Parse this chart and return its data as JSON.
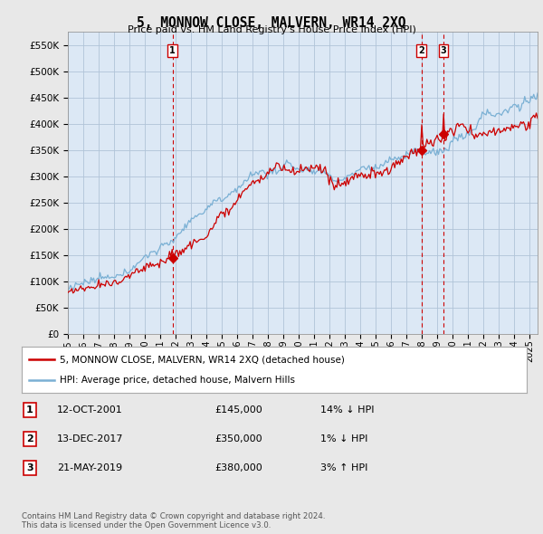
{
  "title": "5, MONNOW CLOSE, MALVERN, WR14 2XQ",
  "subtitle": "Price paid vs. HM Land Registry's House Price Index (HPI)",
  "ylabel_ticks": [
    "£0",
    "£50K",
    "£100K",
    "£150K",
    "£200K",
    "£250K",
    "£300K",
    "£350K",
    "£400K",
    "£450K",
    "£500K",
    "£550K"
  ],
  "ylim": [
    0,
    575000
  ],
  "xlim_start": 1995.0,
  "xlim_end": 2025.5,
  "background_color": "#e8e8e8",
  "plot_bg_color": "#dce8f5",
  "grid_color": "#b0c4d8",
  "sale_color": "#cc0000",
  "hpi_color": "#7ab0d4",
  "annotation_color": "#cc0000",
  "legend_sale_label": "5, MONNOW CLOSE, MALVERN, WR14 2XQ (detached house)",
  "legend_hpi_label": "HPI: Average price, detached house, Malvern Hills",
  "transactions": [
    {
      "id": 1,
      "date_x": 2001.79,
      "price": 145000,
      "label": "1",
      "date_str": "12-OCT-2001",
      "price_str": "£145,000",
      "hpi_str": "14% ↓ HPI"
    },
    {
      "id": 2,
      "date_x": 2017.95,
      "price": 350000,
      "label": "2",
      "date_str": "13-DEC-2017",
      "price_str": "£350,000",
      "hpi_str": "1% ↓ HPI"
    },
    {
      "id": 3,
      "date_x": 2019.39,
      "price": 380000,
      "label": "3",
      "date_str": "21-MAY-2019",
      "price_str": "£380,000",
      "hpi_str": "3% ↑ HPI"
    }
  ],
  "footnote": "Contains HM Land Registry data © Crown copyright and database right 2024.\nThis data is licensed under the Open Government Licence v3.0."
}
